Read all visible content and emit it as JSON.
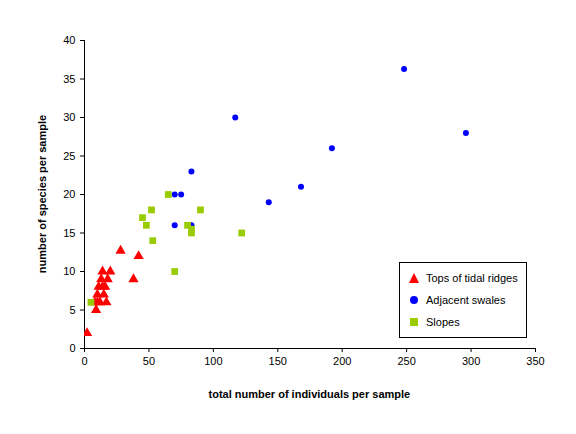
{
  "chart_data": {
    "type": "scatter",
    "xlabel": "total number of individuals per sample",
    "ylabel": "number of species per sample",
    "xlim": [
      0,
      350
    ],
    "xticks": [
      0,
      50,
      100,
      150,
      200,
      250,
      300,
      350
    ],
    "ylim": [
      0,
      40
    ],
    "yticks": [
      0,
      5,
      10,
      15,
      20,
      25,
      30,
      35,
      40
    ],
    "grid": false,
    "legend": "lower right",
    "series": [
      {
        "name": "Tops of tidal ridges",
        "color": "#ff0000",
        "marker": "triangle",
        "x": [
          2,
          8,
          9,
          10,
          11,
          12,
          13,
          14,
          15,
          16,
          17,
          18,
          20,
          28,
          38,
          42,
          10,
          14
        ],
        "values": [
          2,
          6,
          5,
          7,
          8,
          6,
          9,
          10,
          7,
          8,
          6,
          9,
          10,
          12.7,
          9,
          12,
          6,
          8
        ]
      },
      {
        "name": "Adjacent swales",
        "color": "#0000ff",
        "marker": "circle",
        "x": [
          70,
          75,
          70,
          83,
          83,
          117,
          143,
          168,
          192,
          248,
          296
        ],
        "values": [
          20,
          20,
          16,
          16,
          23,
          30,
          19,
          21,
          26,
          36.3,
          28
        ]
      },
      {
        "name": "Slopes",
        "color": "#99cc00",
        "marker": "square",
        "x": [
          5,
          45,
          48,
          52,
          53,
          65,
          70,
          80,
          83,
          83,
          90,
          122
        ],
        "values": [
          6,
          17,
          16,
          18,
          14,
          20,
          10,
          16,
          15,
          15.5,
          18,
          15
        ]
      }
    ]
  }
}
